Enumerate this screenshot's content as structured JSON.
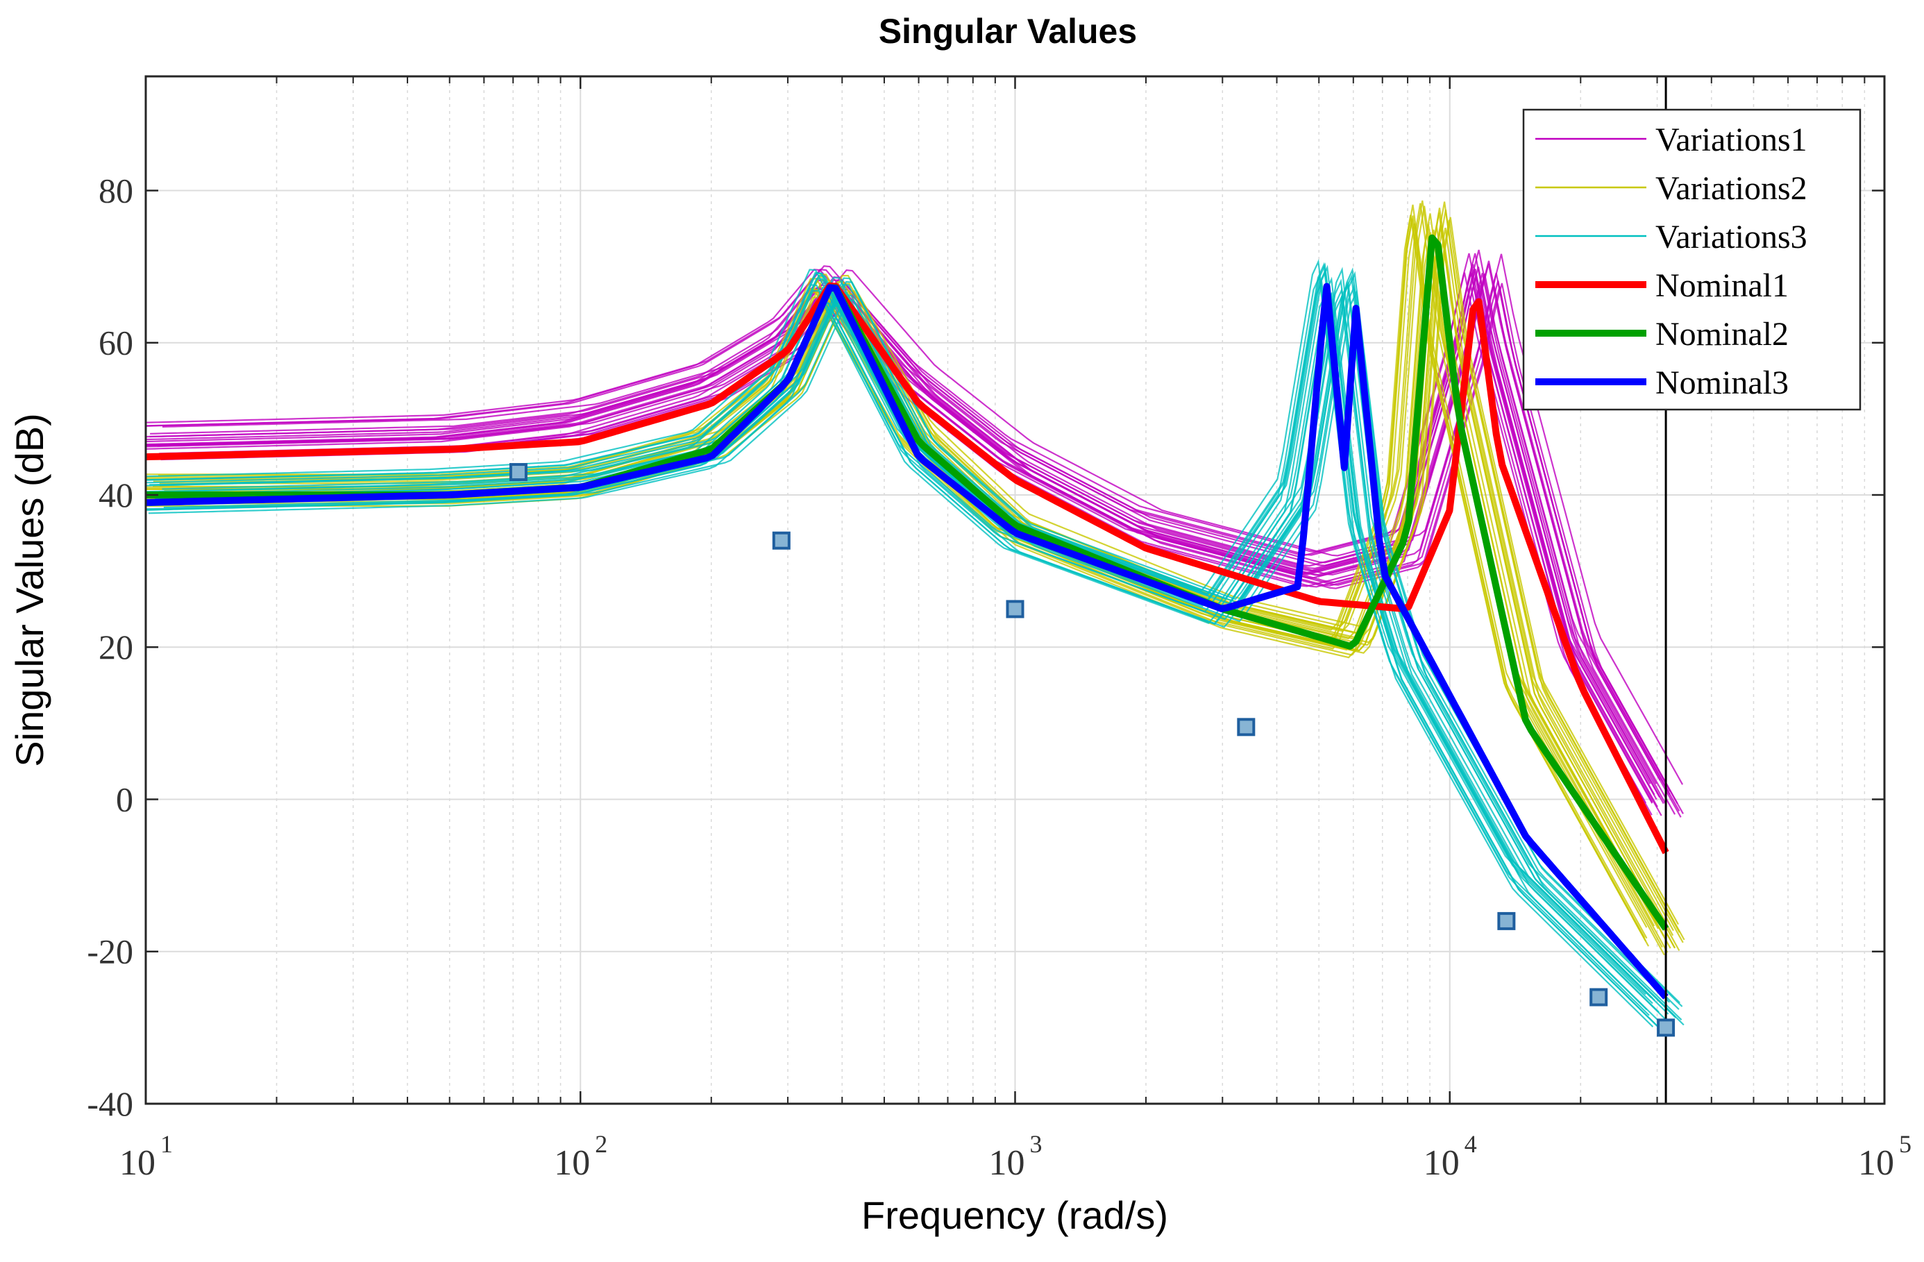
{
  "chart_data": {
    "type": "line",
    "title": "Singular Values",
    "xlabel": "Frequency (rad/s)",
    "ylabel": "Singular Values (dB)",
    "xscale": "log",
    "xlim": [
      10,
      100000
    ],
    "ylim": [
      -40,
      95
    ],
    "grid": true,
    "legend_position": "top-right",
    "x_ticks": [
      {
        "base": "10",
        "exp": "1"
      },
      {
        "base": "10",
        "exp": "2"
      },
      {
        "base": "10",
        "exp": "3"
      },
      {
        "base": "10",
        "exp": "4"
      },
      {
        "base": "10",
        "exp": "5"
      }
    ],
    "y_ticks": [
      "-40",
      "-20",
      "0",
      "20",
      "40",
      "60",
      "80"
    ],
    "y_tick_values": [
      -40,
      -20,
      0,
      20,
      40,
      60,
      80
    ],
    "vertical_marker_x": 31416,
    "series": [
      {
        "name": "Variations1",
        "color": "#c000c0",
        "style": "thin-band",
        "variant": 1,
        "points": [
          [
            10,
            47
          ],
          [
            50,
            48
          ],
          [
            100,
            50
          ],
          [
            200,
            55
          ],
          [
            300,
            61
          ],
          [
            380,
            68
          ],
          [
            600,
            55
          ],
          [
            1000,
            45
          ],
          [
            2000,
            36
          ],
          [
            5000,
            30
          ],
          [
            8000,
            33
          ],
          [
            11000,
            60
          ],
          [
            12000,
            70
          ],
          [
            13000,
            60
          ],
          [
            20000,
            20
          ],
          [
            31416,
            0
          ]
        ]
      },
      {
        "name": "Variations2",
        "color": "#c8c800",
        "style": "thin-band",
        "variant": 2,
        "points": [
          [
            10,
            41
          ],
          [
            50,
            41
          ],
          [
            100,
            42
          ],
          [
            200,
            47
          ],
          [
            300,
            55
          ],
          [
            380,
            68
          ],
          [
            600,
            48
          ],
          [
            1000,
            36
          ],
          [
            3000,
            25
          ],
          [
            6000,
            21
          ],
          [
            8000,
            40
          ],
          [
            9000,
            79
          ],
          [
            10000,
            60
          ],
          [
            15000,
            15
          ],
          [
            31416,
            -18
          ]
        ]
      },
      {
        "name": "Variations3",
        "color": "#00c0c0",
        "style": "thin-band",
        "variant": 3,
        "points": [
          [
            10,
            40
          ],
          [
            50,
            41
          ],
          [
            100,
            42
          ],
          [
            200,
            46
          ],
          [
            300,
            55
          ],
          [
            380,
            68
          ],
          [
            600,
            46
          ],
          [
            1000,
            35
          ],
          [
            3000,
            25
          ],
          [
            4500,
            40
          ],
          [
            5500,
            70
          ],
          [
            6500,
            35
          ],
          [
            8000,
            18
          ],
          [
            15000,
            -10
          ],
          [
            31416,
            -28
          ]
        ]
      },
      {
        "name": "Nominal1",
        "color": "#ff0000",
        "style": "thick",
        "variant": 1,
        "points": [
          [
            10,
            45
          ],
          [
            50,
            46
          ],
          [
            100,
            47
          ],
          [
            200,
            52
          ],
          [
            300,
            59
          ],
          [
            380,
            68
          ],
          [
            600,
            52
          ],
          [
            1000,
            42
          ],
          [
            2000,
            33
          ],
          [
            5000,
            26
          ],
          [
            8000,
            25
          ],
          [
            10000,
            38
          ],
          [
            11500,
            68
          ],
          [
            13000,
            45
          ],
          [
            20000,
            15
          ],
          [
            31416,
            -7
          ]
        ]
      },
      {
        "name": "Nominal2",
        "color": "#00a000",
        "style": "thick",
        "variant": 2,
        "points": [
          [
            10,
            40
          ],
          [
            50,
            40
          ],
          [
            100,
            41
          ],
          [
            200,
            46
          ],
          [
            300,
            55
          ],
          [
            380,
            68
          ],
          [
            600,
            47
          ],
          [
            1000,
            36
          ],
          [
            3000,
            25
          ],
          [
            6000,
            20
          ],
          [
            8000,
            35
          ],
          [
            9200,
            77
          ],
          [
            10500,
            50
          ],
          [
            15000,
            10
          ],
          [
            31416,
            -17
          ]
        ]
      },
      {
        "name": "Nominal3",
        "color": "#0000ff",
        "style": "thick",
        "variant": 3,
        "points": [
          [
            10,
            39
          ],
          [
            50,
            40
          ],
          [
            100,
            41
          ],
          [
            200,
            45
          ],
          [
            300,
            55
          ],
          [
            380,
            68
          ],
          [
            600,
            45
          ],
          [
            1000,
            35
          ],
          [
            3000,
            25
          ],
          [
            4500,
            28
          ],
          [
            5200,
            68
          ],
          [
            5800,
            40
          ],
          [
            6000,
            68
          ],
          [
            7000,
            30
          ],
          [
            15000,
            -5
          ],
          [
            31416,
            -26
          ]
        ]
      }
    ],
    "markers": {
      "name": "square markers",
      "color": "#1f5f9f",
      "points": [
        [
          72,
          43
        ],
        [
          290,
          34
        ],
        [
          1000,
          25
        ],
        [
          3400,
          9.5
        ],
        [
          13500,
          -16
        ],
        [
          22000,
          -26
        ],
        [
          31416,
          -30
        ]
      ]
    }
  }
}
